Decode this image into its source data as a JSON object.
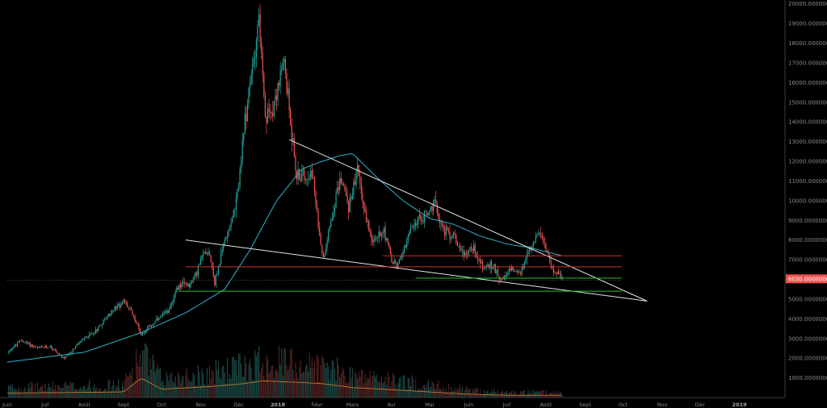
{
  "chart_data": {
    "type": "candlestick",
    "theme": {
      "background": "#000000",
      "up_color": "#26a69a",
      "down_color": "#ef5350",
      "ma_color": "#2fb3c8",
      "vol_ma_color": "#e0893a",
      "trendline_color": "#e6e6e6",
      "resistance_color": "#d32f2f",
      "support_color": "#27c427",
      "price_tag_color": "#ef5350"
    },
    "y_axis": {
      "side": "right",
      "range": [
        0,
        20000
      ],
      "ticks": [
        "20000.00000000",
        "19000.00000000",
        "18000.00000000",
        "17000.00000000",
        "16000.00000000",
        "15000.00000000",
        "14000.00000000",
        "13000.00000000",
        "12000.00000000",
        "11000.00000000",
        "10000.00000000",
        "9000.00000000",
        "8000.00000000",
        "7000.00000000",
        "6000.00000000",
        "5000.00000000",
        "4000.00000000",
        "3000.00000000",
        "2000.00000000",
        "1000.00000000"
      ],
      "tick_values": [
        20000,
        19000,
        18000,
        17000,
        16000,
        15000,
        14000,
        13000,
        12000,
        11000,
        10000,
        9000,
        8000,
        7000,
        6000,
        5000,
        4000,
        3000,
        2000,
        1000
      ]
    },
    "x_axis": {
      "labels": [
        "Juin",
        "Juil",
        "Août",
        "Sept",
        "Oct",
        "Nov",
        "Déc",
        "2018",
        "Févr",
        "Mars",
        "Avr",
        "Mai",
        "Juin",
        "Juil",
        "Août",
        "Sept",
        "Oct",
        "Nov",
        "Déc",
        "2019"
      ],
      "bold_labels": [
        "2018",
        "2019"
      ]
    },
    "last_price_label": "6030.00000000",
    "last_price": 6030,
    "price_anchors": [
      [
        "2017-06-01",
        2300
      ],
      [
        "2017-06-12",
        2900
      ],
      [
        "2017-06-25",
        2500
      ],
      [
        "2017-07-05",
        2600
      ],
      [
        "2017-07-16",
        1950
      ],
      [
        "2017-07-28",
        2800
      ],
      [
        "2017-08-10",
        3400
      ],
      [
        "2017-08-20",
        4200
      ],
      [
        "2017-09-01",
        4900
      ],
      [
        "2017-09-08",
        4300
      ],
      [
        "2017-09-15",
        3200
      ],
      [
        "2017-09-25",
        3800
      ],
      [
        "2017-10-05",
        4300
      ],
      [
        "2017-10-15",
        5700
      ],
      [
        "2017-10-25",
        5800
      ],
      [
        "2017-11-04",
        7400
      ],
      [
        "2017-11-08",
        7400
      ],
      [
        "2017-11-12",
        5800
      ],
      [
        "2017-11-20",
        8000
      ],
      [
        "2017-11-29",
        9800
      ],
      [
        "2017-12-07",
        14500
      ],
      [
        "2017-12-12",
        16800
      ],
      [
        "2017-12-17",
        19400
      ],
      [
        "2017-12-22",
        14000
      ],
      [
        "2017-12-28",
        14800
      ],
      [
        "2018-01-06",
        17000
      ],
      [
        "2018-01-12",
        13500
      ],
      [
        "2018-01-16",
        11200
      ],
      [
        "2018-01-22",
        11300
      ],
      [
        "2018-01-28",
        11500
      ],
      [
        "2018-02-01",
        9200
      ],
      [
        "2018-02-06",
        7000
      ],
      [
        "2018-02-10",
        8500
      ],
      [
        "2018-02-20",
        11200
      ],
      [
        "2018-02-26",
        9700
      ],
      [
        "2018-03-05",
        11500
      ],
      [
        "2018-03-12",
        9000
      ],
      [
        "2018-03-18",
        7900
      ],
      [
        "2018-03-26",
        8600
      ],
      [
        "2018-04-01",
        6900
      ],
      [
        "2018-04-06",
        6700
      ],
      [
        "2018-04-12",
        7900
      ],
      [
        "2018-04-20",
        8900
      ],
      [
        "2018-04-28",
        9300
      ],
      [
        "2018-05-05",
        9800
      ],
      [
        "2018-05-12",
        8500
      ],
      [
        "2018-05-20",
        8200
      ],
      [
        "2018-05-28",
        7300
      ],
      [
        "2018-06-05",
        7600
      ],
      [
        "2018-06-12",
        6600
      ],
      [
        "2018-06-20",
        6700
      ],
      [
        "2018-06-28",
        5900
      ],
      [
        "2018-07-05",
        6600
      ],
      [
        "2018-07-12",
        6300
      ],
      [
        "2018-07-18",
        7300
      ],
      [
        "2018-07-24",
        8300
      ],
      [
        "2018-07-28",
        8200
      ],
      [
        "2018-08-04",
        7000
      ],
      [
        "2018-08-08",
        6400
      ],
      [
        "2018-08-14",
        6030
      ]
    ],
    "ma_anchors": [
      [
        "2017-06-01",
        1800
      ],
      [
        "2017-08-01",
        2300
      ],
      [
        "2017-09-15",
        3300
      ],
      [
        "2017-10-20",
        4300
      ],
      [
        "2017-11-20",
        5500
      ],
      [
        "2017-12-10",
        7500
      ],
      [
        "2017-12-31",
        10000
      ],
      [
        "2018-01-20",
        11600
      ],
      [
        "2018-02-05",
        12000
      ],
      [
        "2018-02-20",
        12300
      ],
      [
        "2018-03-01",
        12400
      ],
      [
        "2018-03-20",
        11200
      ],
      [
        "2018-04-10",
        10000
      ],
      [
        "2018-05-01",
        9100
      ],
      [
        "2018-05-20",
        8800
      ],
      [
        "2018-06-10",
        8200
      ],
      [
        "2018-07-01",
        7800
      ],
      [
        "2018-07-20",
        7600
      ],
      [
        "2018-08-14",
        7200
      ]
    ],
    "volume_profile": [
      [
        "2017-06-01",
        0.08
      ],
      [
        "2017-09-01",
        0.1
      ],
      [
        "2017-09-15",
        0.35
      ],
      [
        "2017-10-01",
        0.15
      ],
      [
        "2017-11-10",
        0.2
      ],
      [
        "2017-12-05",
        0.25
      ],
      [
        "2017-12-20",
        0.3
      ],
      [
        "2018-01-10",
        0.28
      ],
      [
        "2018-02-05",
        0.25
      ],
      [
        "2018-03-01",
        0.18
      ],
      [
        "2018-04-01",
        0.14
      ],
      [
        "2018-05-01",
        0.1
      ],
      [
        "2018-06-01",
        0.06
      ],
      [
        "2018-07-01",
        0.04
      ],
      [
        "2018-08-14",
        0.04
      ]
    ],
    "drawings": {
      "upper_trendline": [
        [
          "2018-01-10",
          13100
        ],
        [
          "2018-10-20",
          4900
        ]
      ],
      "lower_trendline": [
        [
          "2017-10-20",
          8000
        ],
        [
          "2018-10-20",
          4900
        ]
      ],
      "resistance_lines": [
        {
          "from": "2017-10-20",
          "to": "2018-09-30",
          "price": 6640
        },
        {
          "from": "2018-03-25",
          "to": "2018-09-30",
          "price": 7200
        }
      ],
      "support_lines": [
        {
          "from": "2018-04-20",
          "to": "2018-09-30",
          "price": 6060
        },
        {
          "from": "2017-10-15",
          "to": "2018-09-30",
          "price": 5400
        }
      ],
      "dotted_line": {
        "from": "2017-06-01",
        "to": "2018-09-30",
        "price": 5950
      }
    }
  }
}
